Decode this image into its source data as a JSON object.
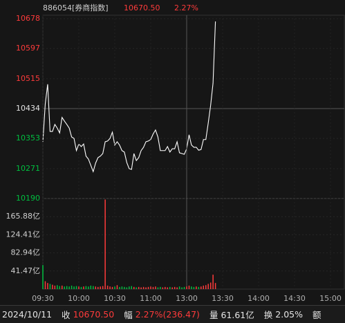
{
  "header": {
    "code": "886054[券商指数]",
    "price": "10670.50",
    "change": "2.27%"
  },
  "status_bar": {
    "date": "2024/10/11",
    "fields": [
      {
        "label": "收",
        "value": "10670.50",
        "color": "#ff3b3b"
      },
      {
        "label": "幅",
        "value": "2.27%(236.47)",
        "color": "#ff3b3b"
      },
      {
        "label": "量",
        "value": "61.61亿",
        "color": "#e6e6e6"
      },
      {
        "label": "换",
        "value": "2.05%",
        "color": "#e6e6e6"
      },
      {
        "label": "额"
      }
    ]
  },
  "chart_data": [
    {
      "type": "line",
      "color": "#ffffff",
      "up_color": "#ff3b3b",
      "down_color": "#00c040",
      "flat_color": "#e6e6e6",
      "xlim": [
        0,
        240
      ],
      "x": [
        0,
        2,
        4,
        6,
        8,
        10,
        12,
        14,
        16,
        18,
        20,
        22,
        24,
        26,
        28,
        30,
        32,
        34,
        36,
        38,
        40,
        42,
        44,
        46,
        48,
        50,
        52,
        54,
        56,
        58,
        60,
        62,
        64,
        66,
        68,
        70,
        72,
        74,
        76,
        78,
        80,
        82,
        84,
        86,
        88,
        90,
        92,
        94,
        96,
        98,
        100,
        102,
        104,
        106,
        108,
        110,
        112,
        114,
        116,
        118,
        120,
        122,
        124,
        126,
        128,
        130,
        132,
        134,
        136,
        138,
        140,
        142,
        144
      ],
      "values": [
        10344,
        10447,
        10500,
        10372,
        10372,
        10391,
        10381,
        10368,
        10410,
        10400,
        10391,
        10381,
        10357,
        10353,
        10320,
        10338,
        10331,
        10338,
        10305,
        10297,
        10280,
        10263,
        10286,
        10301,
        10305,
        10312,
        10344,
        10346,
        10353,
        10370,
        10335,
        10344,
        10335,
        10320,
        10316,
        10288,
        10271,
        10269,
        10312,
        10293,
        10301,
        10320,
        10329,
        10344,
        10346,
        10350,
        10365,
        10376,
        10357,
        10320,
        10320,
        10320,
        10331,
        10316,
        10325,
        10325,
        10344,
        10314,
        10312,
        10310,
        10325,
        10363,
        10335,
        10329,
        10329,
        10321,
        10323,
        10350,
        10350,
        10395,
        10443,
        10503,
        10670.5
      ],
      "ylim": [
        10190,
        10678
      ],
      "yticks": [
        10678,
        10597,
        10515,
        10434,
        10353,
        10271,
        10190
      ]
    },
    {
      "type": "bar",
      "up_color": "#ff3b3b",
      "down_color": "#00c040",
      "xlim": [
        0,
        240
      ],
      "x": [
        0,
        2,
        4,
        6,
        8,
        10,
        12,
        14,
        16,
        18,
        20,
        22,
        24,
        26,
        28,
        30,
        32,
        34,
        36,
        38,
        40,
        42,
        44,
        46,
        48,
        50,
        52,
        54,
        56,
        58,
        60,
        62,
        64,
        66,
        68,
        70,
        72,
        74,
        76,
        78,
        80,
        82,
        84,
        86,
        88,
        90,
        92,
        94,
        96,
        98,
        100,
        102,
        104,
        106,
        108,
        110,
        112,
        114,
        116,
        118,
        120,
        122,
        124,
        126,
        128,
        130,
        132,
        134,
        136,
        138,
        140,
        142,
        144
      ],
      "values": [
        55,
        18,
        14,
        12,
        10,
        8,
        9,
        7,
        8,
        6,
        7,
        6,
        8,
        6,
        7,
        6,
        5,
        6,
        7,
        6,
        8,
        7,
        6,
        5,
        6,
        7,
        205,
        8,
        6,
        5,
        6,
        9,
        5,
        6,
        5,
        4,
        6,
        7,
        5,
        4,
        5,
        4,
        5,
        4,
        5,
        6,
        5,
        6,
        4,
        5,
        4,
        5,
        4,
        5,
        4,
        5,
        4,
        6,
        4,
        5,
        6,
        8,
        6,
        5,
        6,
        5,
        6,
        8,
        9,
        12,
        15,
        33,
        14
      ],
      "ylim": [
        0,
        207.35
      ],
      "yticks": [
        {
          "value": 165.88,
          "label": "165.88亿"
        },
        {
          "value": 124.41,
          "label": "124.41亿"
        },
        {
          "value": 82.94,
          "label": "82.94亿"
        },
        {
          "value": 41.47,
          "label": "41.47亿"
        }
      ],
      "xticks": [
        {
          "value": 0,
          "label": "09:30"
        },
        {
          "value": 30,
          "label": "10:00"
        },
        {
          "value": 60,
          "label": "10:30"
        },
        {
          "value": 90,
          "label": "11:00"
        },
        {
          "value": 120,
          "label": "13:00"
        },
        {
          "value": 150,
          "label": "13:30"
        },
        {
          "value": 180,
          "label": "14:00"
        },
        {
          "value": 210,
          "label": "14:30"
        },
        {
          "value": 240,
          "label": "15:00"
        }
      ]
    }
  ]
}
